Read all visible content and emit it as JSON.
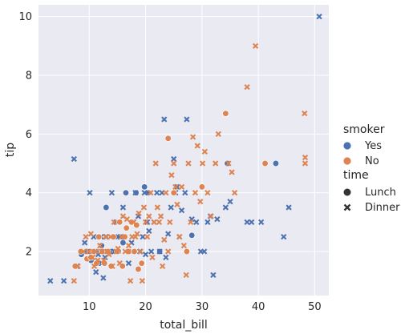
{
  "chart_data": {
    "type": "scatter",
    "title": "",
    "xlabel": "total_bill",
    "ylabel": "tip",
    "xlim": [
      1.0,
      52.5
    ],
    "ylim": [
      0.5,
      10.4
    ],
    "xticks": [
      10,
      20,
      30,
      40,
      50
    ],
    "yticks": [
      2,
      4,
      6,
      8,
      10
    ],
    "grid": true,
    "legend_placement": "right",
    "legend": {
      "hue_title": "smoker",
      "hue_entries": [
        {
          "label": "Yes",
          "color": "#4c72b0"
        },
        {
          "label": "No",
          "color": "#dd8452"
        }
      ],
      "style_title": "time",
      "style_entries": [
        {
          "label": "Lunch",
          "marker": "circle"
        },
        {
          "label": "Dinner",
          "marker": "x"
        }
      ]
    },
    "series": [
      {
        "smoker": "Yes",
        "time": "Lunch",
        "color": "#4c72b0",
        "marker": "circle",
        "x": [
          8.6,
          9.6,
          10.1,
          10.3,
          10.5,
          11.2,
          11.8,
          12.2,
          12.5,
          13.0,
          13.4,
          14.0,
          14.7,
          15.2,
          16.0,
          16.5,
          17.2,
          18.3,
          19.8,
          20.5,
          22.5,
          28.2,
          34.5,
          43.1
        ],
        "y": [
          1.9,
          2.0,
          2.0,
          1.7,
          2.0,
          2.0,
          1.6,
          2.2,
          2.0,
          3.5,
          2.0,
          2.0,
          2.0,
          2.0,
          2.3,
          4.0,
          2.0,
          4.0,
          4.2,
          4.0,
          2.0,
          2.55,
          5.0,
          5.0
        ]
      },
      {
        "smoker": "Yes",
        "time": "Dinner",
        "color": "#4c72b0",
        "marker": "x",
        "x": [
          3.1,
          5.5,
          7.3,
          7.8,
          9.2,
          10.1,
          10.8,
          11.2,
          11.6,
          12.1,
          12.5,
          12.8,
          13.0,
          13.5,
          14.0,
          14.5,
          14.8,
          15.1,
          15.5,
          16.0,
          16.3,
          17.0,
          17.5,
          17.8,
          18.2,
          18.7,
          19.0,
          19.5,
          19.8,
          20.0,
          20.3,
          20.6,
          21.0,
          21.5,
          22.0,
          22.5,
          22.9,
          23.3,
          23.6,
          24.0,
          24.5,
          25.0,
          25.3,
          25.6,
          26.0,
          26.4,
          27.0,
          27.3,
          28.2,
          29.0,
          29.8,
          30.4,
          31.0,
          31.5,
          32.0,
          32.7,
          34.2,
          35.0,
          38.0,
          38.8,
          40.5,
          44.5,
          45.4,
          50.8
        ],
        "y": [
          1.0,
          1.0,
          5.15,
          1.5,
          2.3,
          4.0,
          2.5,
          1.3,
          1.9,
          2.5,
          1.1,
          1.8,
          2.5,
          2.0,
          4.0,
          2.0,
          3.0,
          2.5,
          2.5,
          3.5,
          2.5,
          1.6,
          2.3,
          3.0,
          4.0,
          3.2,
          2.0,
          2.5,
          4.0,
          1.9,
          3.0,
          2.7,
          2.0,
          3.0,
          4.0,
          2.0,
          4.0,
          6.5,
          1.8,
          2.6,
          3.5,
          5.15,
          4.0,
          4.2,
          2.5,
          3.4,
          4.0,
          6.5,
          3.1,
          3.0,
          2.0,
          2.0,
          3.0,
          3.2,
          1.2,
          3.1,
          3.5,
          3.7,
          3.0,
          3.0,
          3.0,
          2.5,
          3.5,
          10.0
        ]
      },
      {
        "smoker": "No",
        "time": "Lunch",
        "color": "#dd8452",
        "marker": "circle",
        "x": [
          7.5,
          8.5,
          9.6,
          10.3,
          10.8,
          11.3,
          11.7,
          12.3,
          12.7,
          13.3,
          13.9,
          14.3,
          15.0,
          15.4,
          15.9,
          16.3,
          16.6,
          17.0,
          17.5,
          18.0,
          18.4,
          18.7,
          19.3,
          24.0,
          25.0,
          27.3,
          30.0,
          34.2,
          41.2
        ],
        "y": [
          1.5,
          2.0,
          1.75,
          1.8,
          2.0,
          1.6,
          2.5,
          2.0,
          1.6,
          2.0,
          1.5,
          2.5,
          2.0,
          3.0,
          1.5,
          2.5,
          2.8,
          2.0,
          3.0,
          2.0,
          2.9,
          1.4,
          1.6,
          5.85,
          4.0,
          2.0,
          4.2,
          6.7,
          5.0
        ]
      },
      {
        "smoker": "No",
        "time": "Dinner",
        "color": "#dd8452",
        "marker": "x",
        "x": [
          7.3,
          8.0,
          9.0,
          9.4,
          9.9,
          10.3,
          10.6,
          10.9,
          11.2,
          11.5,
          11.9,
          12.2,
          12.6,
          12.9,
          13.2,
          13.5,
          13.8,
          14.1,
          14.4,
          14.8,
          15.1,
          15.4,
          15.7,
          16.0,
          16.4,
          16.7,
          17.0,
          17.3,
          17.6,
          17.9,
          18.2,
          18.5,
          18.8,
          19.1,
          19.4,
          19.7,
          20.0,
          20.3,
          20.6,
          20.9,
          21.2,
          21.5,
          21.8,
          22.1,
          22.4,
          22.7,
          23.0,
          23.3,
          23.6,
          24.0,
          24.3,
          24.6,
          25.0,
          25.3,
          25.6,
          26.0,
          26.4,
          26.8,
          27.2,
          27.6,
          28.0,
          28.4,
          28.8,
          29.2,
          29.7,
          30.1,
          30.5,
          31.0,
          31.6,
          32.4,
          32.9,
          34.7,
          35.3,
          35.8,
          38.0,
          39.5,
          48.2,
          48.3,
          48.3
        ],
        "y": [
          1.0,
          1.5,
          2.0,
          2.5,
          2.0,
          2.6,
          1.8,
          1.5,
          2.0,
          1.7,
          2.2,
          2.0,
          1.7,
          2.5,
          2.0,
          1.9,
          2.5,
          1.5,
          3.0,
          2.0,
          2.1,
          1.6,
          2.5,
          3.2,
          2.0,
          3.1,
          2.2,
          1.0,
          2.5,
          3.0,
          2.5,
          2.6,
          3.3,
          2.0,
          1.0,
          3.5,
          3.0,
          2.5,
          3.2,
          4.0,
          1.8,
          3.0,
          5.0,
          3.5,
          3.0,
          3.2,
          1.5,
          2.4,
          4.0,
          2.0,
          3.0,
          4.6,
          5.0,
          4.2,
          3.6,
          2.5,
          4.2,
          2.2,
          1.2,
          5.0,
          3.0,
          5.9,
          4.0,
          5.6,
          3.7,
          5.0,
          5.4,
          4.0,
          3.2,
          5.0,
          6.0,
          5.0,
          4.7,
          4.0,
          7.6,
          9.0,
          6.7,
          5.0,
          5.2
        ]
      }
    ]
  }
}
